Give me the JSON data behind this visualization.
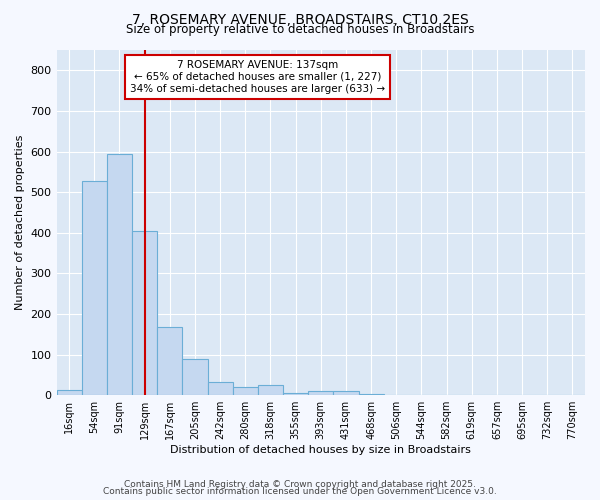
{
  "title1": "7, ROSEMARY AVENUE, BROADSTAIRS, CT10 2ES",
  "title2": "Size of property relative to detached houses in Broadstairs",
  "xlabel": "Distribution of detached houses by size in Broadstairs",
  "ylabel": "Number of detached properties",
  "bar_color": "#c5d8f0",
  "bar_edge_color": "#6baed6",
  "plot_bg_color": "#dce8f5",
  "fig_bg_color": "#f5f8ff",
  "grid_color": "#ffffff",
  "vline_color": "#cc0000",
  "annotation_box_edge_color": "#cc0000",
  "annotation_text_line1": "7 ROSEMARY AVENUE: 137sqm",
  "annotation_text_line2": "← 65% of detached houses are smaller (1, 227)",
  "annotation_text_line3": "34% of semi-detached houses are larger (633) →",
  "categories": [
    "16sqm",
    "54sqm",
    "91sqm",
    "129sqm",
    "167sqm",
    "205sqm",
    "242sqm",
    "280sqm",
    "318sqm",
    "355sqm",
    "393sqm",
    "431sqm",
    "468sqm",
    "506sqm",
    "544sqm",
    "582sqm",
    "619sqm",
    "657sqm",
    "695sqm",
    "732sqm",
    "770sqm"
  ],
  "values": [
    12,
    527,
    595,
    405,
    168,
    90,
    32,
    20,
    25,
    5,
    10,
    10,
    4,
    0,
    0,
    0,
    0,
    0,
    0,
    0,
    0
  ],
  "ylim": [
    0,
    850
  ],
  "yticks": [
    0,
    100,
    200,
    300,
    400,
    500,
    600,
    700,
    800
  ],
  "vline_index": 3,
  "footer1": "Contains HM Land Registry data © Crown copyright and database right 2025.",
  "footer2": "Contains public sector information licensed under the Open Government Licence v3.0."
}
